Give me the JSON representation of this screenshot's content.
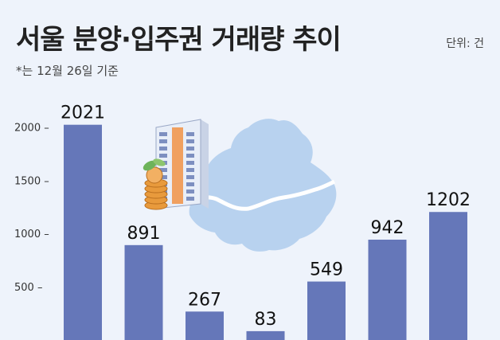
{
  "chart_data": {
    "type": "bar",
    "title": "서울 분양·입주권 거래량 추이",
    "subtitle": "*는 12월 26일 기준",
    "unit": "단위: 건",
    "categories": [
      "",
      "",
      "",
      "",
      "",
      "",
      ""
    ],
    "values": [
      2021,
      891,
      267,
      83,
      549,
      942,
      1202
    ],
    "value_labels": [
      "2021",
      "891",
      "267",
      "83",
      "549",
      "942",
      "1202"
    ],
    "y_ticks": [
      500,
      1000,
      1500,
      2000
    ],
    "y_tick_labels": [
      "500 –",
      "1000 –",
      "1500 –",
      "2000 –"
    ],
    "ylim": [
      0,
      2370
    ],
    "grid": false,
    "bar_color": "#6577b9"
  },
  "illustration": {
    "map_color": "#b8d2ef",
    "river_color": "#ffffff",
    "building_color": "#e8eef8",
    "building_accent": "#f0a060",
    "coin_color": "#e89a3c"
  }
}
